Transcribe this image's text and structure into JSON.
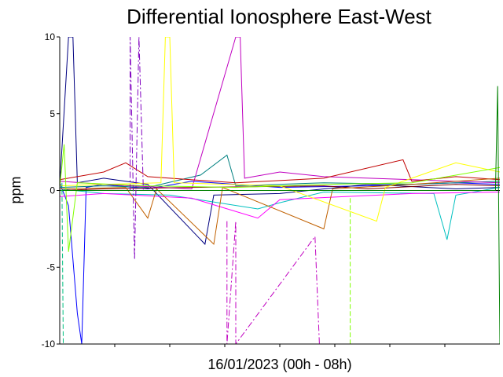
{
  "chart_data": {
    "type": "line",
    "title": "Differential Ionosphere East-West",
    "xlabel": "16/01/2023 (00h - 08h)",
    "ylabel": "ppm",
    "ylim": [
      -10,
      10
    ],
    "yticks": [
      "10",
      "5",
      "0",
      "-5",
      "-10"
    ],
    "ytick_values": [
      10,
      5,
      0,
      -5,
      -10
    ],
    "x_minor_ticks": 8,
    "grid": false,
    "legend": "none",
    "series": [
      {
        "color": "#0000ff",
        "style": "solid",
        "points": [
          [
            0,
            0.5
          ],
          [
            0.02,
            -1
          ],
          [
            0.04,
            -8
          ],
          [
            0.05,
            -10
          ],
          [
            0.06,
            0.2
          ],
          [
            0.1,
            0.4
          ],
          [
            0.2,
            0.1
          ],
          [
            0.3,
            0.6
          ],
          [
            0.5,
            0.2
          ],
          [
            0.7,
            0.3
          ],
          [
            0.9,
            0.5
          ],
          [
            1,
            0.4
          ]
        ]
      },
      {
        "color": "#000080",
        "style": "solid",
        "points": [
          [
            0,
            0.3
          ],
          [
            0.02,
            10
          ],
          [
            0.03,
            10
          ],
          [
            0.04,
            0.5
          ],
          [
            0.1,
            0.8
          ],
          [
            0.2,
            0.4
          ],
          [
            0.33,
            -3.5
          ],
          [
            0.35,
            -0.3
          ],
          [
            0.5,
            -0.2
          ],
          [
            0.7,
            0.4
          ],
          [
            0.9,
            0.1
          ],
          [
            1,
            0.2
          ]
        ]
      },
      {
        "color": "#00c0c0",
        "style": "solid",
        "points": [
          [
            0,
            0.1
          ],
          [
            0.1,
            -0.2
          ],
          [
            0.25,
            -0.3
          ],
          [
            0.45,
            -1.2
          ],
          [
            0.5,
            -0.8
          ],
          [
            0.6,
            -0.1
          ],
          [
            0.85,
            -0.2
          ],
          [
            0.88,
            -3.2
          ],
          [
            0.9,
            -0.3
          ],
          [
            1,
            0.2
          ]
        ]
      },
      {
        "color": "#008080",
        "style": "solid",
        "points": [
          [
            0,
            0.2
          ],
          [
            0.1,
            0.3
          ],
          [
            0.2,
            0.2
          ],
          [
            0.32,
            1
          ],
          [
            0.38,
            2.3
          ],
          [
            0.4,
            0.3
          ],
          [
            0.6,
            0.5
          ],
          [
            0.8,
            0.4
          ],
          [
            1,
            0.6
          ]
        ]
      },
      {
        "color": "#c000c0",
        "style": "solid",
        "points": [
          [
            0,
            0.6
          ],
          [
            0.1,
            0.4
          ],
          [
            0.3,
            0.1
          ],
          [
            0.4,
            10
          ],
          [
            0.41,
            10
          ],
          [
            0.42,
            0.8
          ],
          [
            0.5,
            1.2
          ],
          [
            0.6,
            0.9
          ],
          [
            0.8,
            0.7
          ],
          [
            1,
            0.5
          ]
        ]
      },
      {
        "color": "#ff00ff",
        "style": "solid",
        "points": [
          [
            0,
            -0.4
          ],
          [
            0.1,
            -0.2
          ],
          [
            0.3,
            -0.5
          ],
          [
            0.45,
            -1.8
          ],
          [
            0.5,
            -0.6
          ],
          [
            0.65,
            -0.4
          ],
          [
            0.8,
            -0.2
          ],
          [
            1,
            -0.1
          ]
        ]
      },
      {
        "color": "#c00000",
        "style": "solid",
        "points": [
          [
            0,
            0.7
          ],
          [
            0.1,
            1.2
          ],
          [
            0.15,
            1.8
          ],
          [
            0.2,
            0.9
          ],
          [
            0.4,
            0.5
          ],
          [
            0.6,
            0.8
          ],
          [
            0.78,
            2
          ],
          [
            0.8,
            0.6
          ],
          [
            0.9,
            0.9
          ],
          [
            1,
            0.7
          ]
        ]
      },
      {
        "color": "#800000",
        "style": "solid",
        "points": [
          [
            0,
            0
          ],
          [
            0.1,
            0.1
          ],
          [
            0.3,
            0.2
          ],
          [
            0.6,
            0.3
          ],
          [
            0.7,
            0.1
          ],
          [
            0.9,
            0.4
          ],
          [
            1,
            0.3
          ]
        ]
      },
      {
        "color": "#c06000",
        "style": "solid",
        "points": [
          [
            0,
            0.1
          ],
          [
            0.15,
            0.2
          ],
          [
            0.2,
            -1.8
          ],
          [
            0.22,
            0.1
          ],
          [
            0.35,
            -3.5
          ],
          [
            0.37,
            0.2
          ],
          [
            0.6,
            -2.5
          ],
          [
            0.62,
            0.1
          ],
          [
            0.8,
            0.4
          ],
          [
            1,
            0.8
          ]
        ]
      },
      {
        "color": "#ffff00",
        "style": "solid",
        "points": [
          [
            0,
            0.3
          ],
          [
            0.1,
            0.4
          ],
          [
            0.23,
            0.5
          ],
          [
            0.24,
            10
          ],
          [
            0.25,
            10
          ],
          [
            0.26,
            0.5
          ],
          [
            0.5,
            0.3
          ],
          [
            0.72,
            -2
          ],
          [
            0.74,
            0.2
          ],
          [
            0.9,
            1.8
          ],
          [
            1,
            1.2
          ]
        ]
      },
      {
        "color": "#80ff00",
        "style": "solid",
        "points": [
          [
            0,
            0.2
          ],
          [
            0.01,
            3
          ],
          [
            0.02,
            -4
          ],
          [
            0.04,
            0.5
          ],
          [
            0.2,
            0.3
          ],
          [
            0.4,
            0.2
          ],
          [
            0.6,
            0.4
          ],
          [
            0.8,
            0.5
          ],
          [
            1,
            1.5
          ]
        ]
      },
      {
        "color": "#008000",
        "style": "solid",
        "points": [
          [
            0,
            0
          ],
          [
            0.5,
            0
          ],
          [
            0.99,
            0
          ],
          [
            0.995,
            6.8
          ],
          [
            1,
            -10
          ]
        ]
      },
      {
        "color": "#8000c0",
        "style": "dashdot",
        "points": [
          [
            0.16,
            0
          ],
          [
            0.16,
            10
          ],
          [
            0.17,
            -4.5
          ],
          [
            0.18,
            10
          ],
          [
            0.19,
            0
          ]
        ]
      },
      {
        "color": "#c000c0",
        "style": "dashdot",
        "points": [
          [
            0.38,
            -2
          ],
          [
            0.38,
            -10
          ],
          [
            0.4,
            -2
          ],
          [
            0.4,
            -10
          ],
          [
            0.58,
            -3
          ],
          [
            0.59,
            -10
          ]
        ]
      },
      {
        "color": "#80ff00",
        "style": "dashed",
        "points": [
          [
            0.66,
            -0.5
          ],
          [
            0.66,
            -10
          ]
        ]
      },
      {
        "color": "#00c080",
        "style": "dashed",
        "points": [
          [
            0.005,
            0.5
          ],
          [
            0.008,
            -10
          ]
        ]
      }
    ]
  }
}
